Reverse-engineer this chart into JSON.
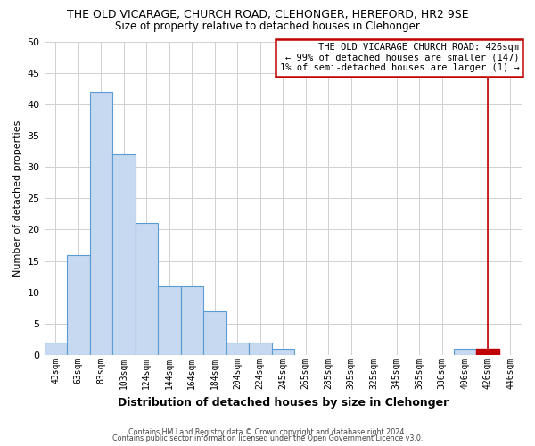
{
  "title": "THE OLD VICARAGE, CHURCH ROAD, CLEHONGER, HEREFORD, HR2 9SE",
  "subtitle": "Size of property relative to detached houses in Clehonger",
  "xlabel": "Distribution of detached houses by size in Clehonger",
  "ylabel": "Number of detached properties",
  "bar_labels": [
    "43sqm",
    "63sqm",
    "83sqm",
    "103sqm",
    "124sqm",
    "144sqm",
    "164sqm",
    "184sqm",
    "204sqm",
    "224sqm",
    "245sqm",
    "265sqm",
    "285sqm",
    "305sqm",
    "325sqm",
    "345sqm",
    "365sqm",
    "386sqm",
    "406sqm",
    "426sqm",
    "446sqm"
  ],
  "bar_heights": [
    2,
    16,
    42,
    32,
    21,
    11,
    11,
    7,
    2,
    2,
    1,
    0,
    0,
    0,
    0,
    0,
    0,
    0,
    1,
    1,
    0
  ],
  "bar_color": "#c6d9f0",
  "bar_edge_color": "#5b9bd5",
  "highlight_bar_index": 19,
  "highlight_color": "#c00000",
  "highlight_edge_color": "#c00000",
  "ylim": [
    0,
    50
  ],
  "yticks": [
    0,
    5,
    10,
    15,
    20,
    25,
    30,
    35,
    40,
    45,
    50
  ],
  "grid_color": "#d0d0d0",
  "vline_color": "#c00000",
  "annotation_title": "THE OLD VICARAGE CHURCH ROAD: 426sqm",
  "annotation_line1": "← 99% of detached houses are smaller (147)",
  "annotation_line2": "1% of semi-detached houses are larger (1) →",
  "annotation_box_edge": "#c00000",
  "footer1": "Contains HM Land Registry data © Crown copyright and database right 2024.",
  "footer2": "Contains public sector information licensed under the Open Government Licence v3.0."
}
